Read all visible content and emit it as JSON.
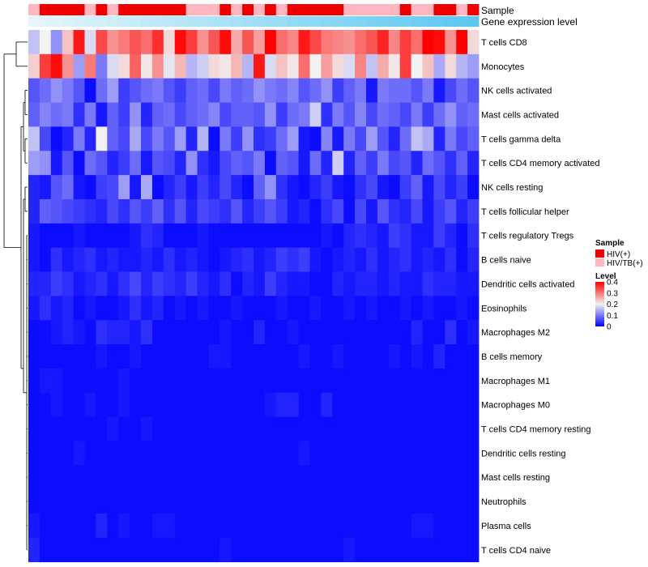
{
  "chart_data": {
    "type": "heatmap",
    "title": "",
    "n_columns": 40,
    "annotation_titles": {
      "sample": "Sample",
      "gene": "Gene expression level"
    },
    "sample_groups": [
      "HIV(+)",
      "HIV/TB(+)"
    ],
    "sample_group_colors": {
      "HIV(+)": "#ee0000",
      "HIV/TB(+)": "#ffb6c1"
    },
    "sample_annotation": [
      "HIV/TB(+)",
      "HIV(+)",
      "HIV(+)",
      "HIV(+)",
      "HIV(+)",
      "HIV/TB(+)",
      "HIV(+)",
      "HIV/TB(+)",
      "HIV(+)",
      "HIV(+)",
      "HIV(+)",
      "HIV(+)",
      "HIV(+)",
      "HIV(+)",
      "HIV/TB(+)",
      "HIV/TB(+)",
      "HIV/TB(+)",
      "HIV(+)",
      "HIV/TB(+)",
      "HIV(+)",
      "HIV/TB(+)",
      "HIV(+)",
      "HIV/TB(+)",
      "HIV(+)",
      "HIV(+)",
      "HIV(+)",
      "HIV(+)",
      "HIV(+)",
      "HIV/TB(+)",
      "HIV/TB(+)",
      "HIV/TB(+)",
      "HIV/TB(+)",
      "HIV/TB(+)",
      "HIV(+)",
      "HIV/TB(+)",
      "HIV/TB(+)",
      "HIV(+)",
      "HIV(+)",
      "HIV/TB(+)",
      "HIV(+)"
    ],
    "gene_expression_range": [
      0,
      1
    ],
    "row_labels": [
      "T cells CD8",
      "Monocytes",
      "NK cells activated",
      "Mast cells activated",
      "T cells gamma delta",
      "T cells CD4 memory activated",
      "NK cells resting",
      "T cells follicular helper",
      "T cells regulatory  Tregs",
      "B cells naive",
      "Dendritic cells activated",
      "Eosinophils",
      "Macrophages M2",
      "B cells memory",
      "Macrophages M1",
      "Macrophages M0",
      "T cells CD4 memory resting",
      "Dendritic cells resting",
      "Mast cells resting",
      "Neutrophils",
      "Plasma cells",
      "T cells CD4 naive"
    ],
    "values": [
      [
        0.16,
        0.2,
        0.12,
        0.24,
        0.38,
        0.18,
        0.34,
        0.28,
        0.3,
        0.33,
        0.31,
        0.36,
        0.22,
        0.39,
        0.35,
        0.28,
        0.33,
        0.39,
        0.26,
        0.33,
        0.27,
        0.4,
        0.31,
        0.29,
        0.38,
        0.34,
        0.3,
        0.29,
        0.28,
        0.31,
        0.33,
        0.37,
        0.29,
        0.35,
        0.31,
        0.4,
        0.39,
        0.28,
        0.4,
        0.22
      ],
      [
        0.23,
        0.35,
        0.39,
        0.28,
        0.13,
        0.3,
        0.1,
        0.18,
        0.22,
        0.32,
        0.21,
        0.28,
        0.19,
        0.25,
        0.15,
        0.17,
        0.22,
        0.21,
        0.25,
        0.15,
        0.38,
        0.18,
        0.24,
        0.21,
        0.31,
        0.2,
        0.27,
        0.22,
        0.18,
        0.29,
        0.16,
        0.26,
        0.21,
        0.35,
        0.2,
        0.24,
        0.14,
        0.22,
        0.15,
        0.13
      ],
      [
        0.07,
        0.09,
        0.12,
        0.1,
        0.07,
        0.01,
        0.09,
        0.13,
        0.05,
        0.07,
        0.09,
        0.1,
        0.07,
        0.05,
        0.08,
        0.09,
        0.06,
        0.1,
        0.08,
        0.09,
        0.12,
        0.1,
        0.09,
        0.11,
        0.07,
        0.09,
        0.12,
        0.05,
        0.08,
        0.1,
        0.02,
        0.1,
        0.09,
        0.09,
        0.07,
        0.1,
        0.02,
        0.06,
        0.09,
        0.07
      ],
      [
        0.08,
        0.11,
        0.09,
        0.1,
        0.04,
        0.1,
        0.02,
        0.08,
        0.05,
        0.12,
        0.03,
        0.08,
        0.09,
        0.06,
        0.08,
        0.09,
        0.11,
        0.06,
        0.08,
        0.08,
        0.07,
        0.12,
        0.05,
        0.09,
        0.1,
        0.17,
        0.04,
        0.1,
        0.07,
        0.11,
        0.06,
        0.09,
        0.08,
        0.06,
        0.1,
        0.05,
        0.09,
        0.12,
        0.08,
        0.09
      ],
      [
        0.16,
        0.06,
        0.01,
        0.03,
        0.1,
        0.03,
        0.2,
        0.08,
        0.06,
        0.14,
        0.06,
        0.1,
        0.07,
        0.13,
        0.03,
        0.15,
        0.01,
        0.1,
        0.05,
        0.12,
        0.04,
        0.05,
        0.09,
        0.13,
        0.02,
        0.01,
        0.11,
        0.02,
        0.1,
        0.06,
        0.13,
        0.07,
        0.03,
        0.09,
        0.16,
        0.14,
        0.03,
        0.1,
        0.06,
        0.08
      ],
      [
        0.13,
        0.12,
        0.02,
        0.07,
        0.01,
        0.09,
        0.07,
        0.03,
        0.05,
        0.09,
        0.02,
        0.07,
        0.06,
        0.03,
        0.12,
        0.04,
        0.02,
        0.06,
        0.08,
        0.07,
        0.1,
        0.01,
        0.08,
        0.07,
        0.02,
        0.09,
        0.03,
        0.17,
        0.03,
        0.08,
        0.05,
        0.1,
        0.06,
        0.07,
        0.03,
        0.09,
        0.07,
        0.04,
        0.08,
        0.03
      ],
      [
        0.03,
        0.02,
        0.07,
        0.09,
        0.02,
        0.01,
        0.05,
        0.06,
        0.13,
        0.02,
        0.14,
        0.01,
        0.03,
        0.05,
        0.02,
        0.05,
        0.03,
        0.06,
        0.03,
        0.01,
        0.08,
        0.12,
        0.04,
        0.02,
        0.01,
        0.03,
        0.05,
        0.02,
        0.01,
        0.04,
        0.06,
        0.02,
        0.01,
        0.05,
        0.08,
        0.02,
        0.06,
        0.03,
        0.05,
        0.01
      ],
      [
        0.03,
        0.08,
        0.07,
        0.06,
        0.05,
        0.04,
        0.03,
        0.06,
        0.04,
        0.07,
        0.05,
        0.08,
        0.04,
        0.07,
        0.03,
        0.06,
        0.05,
        0.04,
        0.07,
        0.03,
        0.05,
        0.07,
        0.05,
        0.02,
        0.03,
        0.01,
        0.04,
        0.06,
        0.01,
        0.06,
        0.02,
        0.07,
        0.04,
        0.03,
        0.06,
        0.02,
        0.05,
        0.07,
        0.03,
        0.05
      ],
      [
        0.02,
        0.01,
        0.01,
        0.01,
        0.02,
        0.01,
        0.01,
        0.01,
        0.01,
        0.02,
        0.04,
        0.03,
        0.01,
        0.01,
        0.01,
        0.02,
        0.01,
        0.01,
        0.01,
        0.01,
        0.01,
        0.01,
        0.01,
        0.01,
        0.01,
        0.01,
        0.02,
        0.01,
        0.03,
        0.04,
        0.03,
        0.02,
        0.05,
        0.04,
        0.02,
        0.02,
        0.05,
        0.03,
        0.01,
        0.04
      ],
      [
        0.02,
        0.01,
        0.04,
        0.02,
        0.03,
        0.04,
        0.02,
        0.03,
        0.02,
        0.02,
        0.03,
        0.02,
        0.04,
        0.02,
        0.03,
        0.02,
        0.01,
        0.02,
        0.03,
        0.04,
        0.02,
        0.03,
        0.05,
        0.04,
        0.05,
        0.02,
        0.01,
        0.02,
        0.03,
        0.02,
        0.04,
        0.02,
        0.03,
        0.04,
        0.02,
        0.03,
        0.02,
        0.04,
        0.01,
        0.03
      ],
      [
        0.03,
        0.03,
        0.05,
        0.04,
        0.02,
        0.03,
        0.04,
        0.02,
        0.04,
        0.06,
        0.03,
        0.05,
        0.04,
        0.03,
        0.05,
        0.03,
        0.02,
        0.04,
        0.01,
        0.03,
        0.02,
        0.05,
        0.03,
        0.02,
        0.02,
        0.01,
        0.01,
        0.03,
        0.02,
        0.03,
        0.03,
        0.02,
        0.03,
        0.02,
        0.02,
        0.04,
        0.03,
        0.03,
        0.02,
        0.02
      ],
      [
        0.02,
        0.04,
        0.02,
        0.03,
        0.01,
        0.02,
        0.01,
        0.01,
        0.02,
        0.04,
        0.02,
        0.03,
        0.01,
        0.02,
        0.01,
        0.02,
        0.01,
        0.01,
        0.02,
        0.01,
        0.01,
        0.01,
        0.02,
        0.01,
        0.01,
        0.02,
        0.01,
        0.01,
        0.02,
        0.01,
        0.02,
        0.01,
        0.01,
        0.02,
        0.01,
        0.02,
        0.01,
        0.01,
        0.02,
        0.01
      ],
      [
        0.01,
        0.01,
        0.02,
        0.03,
        0.02,
        0.01,
        0.04,
        0.03,
        0.03,
        0.02,
        0.04,
        0.01,
        0.01,
        0.01,
        0.01,
        0.01,
        0.01,
        0.02,
        0.01,
        0.01,
        0.03,
        0.01,
        0.01,
        0.02,
        0.01,
        0.01,
        0.01,
        0.01,
        0.01,
        0.01,
        0.01,
        0.01,
        0.01,
        0.01,
        0.03,
        0.01,
        0.01,
        0.04,
        0.01,
        0.02
      ],
      [
        0.01,
        0.01,
        0.01,
        0.01,
        0.01,
        0.01,
        0.02,
        0.01,
        0.01,
        0.02,
        0.01,
        0.01,
        0.01,
        0.01,
        0.01,
        0.01,
        0.02,
        0.02,
        0.01,
        0.01,
        0.01,
        0.01,
        0.01,
        0.01,
        0.02,
        0.01,
        0.01,
        0.02,
        0.01,
        0.01,
        0.01,
        0.01,
        0.02,
        0.01,
        0.02,
        0.01,
        0.03,
        0.01,
        0.01,
        0.01
      ],
      [
        0.01,
        0.02,
        0.02,
        0.01,
        0.01,
        0.01,
        0.01,
        0.01,
        0.02,
        0.01,
        0.01,
        0.01,
        0.01,
        0.01,
        0.01,
        0.01,
        0.01,
        0.01,
        0.01,
        0.01,
        0.01,
        0.01,
        0.01,
        0.01,
        0.01,
        0.01,
        0.01,
        0.01,
        0.01,
        0.01,
        0.01,
        0.01,
        0.01,
        0.01,
        0.01,
        0.01,
        0.01,
        0.01,
        0.01,
        0.01
      ],
      [
        0.01,
        0.01,
        0.02,
        0.01,
        0.01,
        0.02,
        0.01,
        0.01,
        0.02,
        0.01,
        0.01,
        0.01,
        0.01,
        0.01,
        0.01,
        0.01,
        0.01,
        0.01,
        0.01,
        0.01,
        0.01,
        0.02,
        0.03,
        0.03,
        0.01,
        0.01,
        0.03,
        0.01,
        0.01,
        0.01,
        0.01,
        0.01,
        0.01,
        0.01,
        0.01,
        0.01,
        0.01,
        0.01,
        0.01,
        0.01
      ],
      [
        0.01,
        0.01,
        0.01,
        0.01,
        0.01,
        0.01,
        0.01,
        0.02,
        0.01,
        0.01,
        0.02,
        0.01,
        0.01,
        0.01,
        0.01,
        0.01,
        0.01,
        0.01,
        0.01,
        0.01,
        0.01,
        0.01,
        0.01,
        0.01,
        0.01,
        0.01,
        0.01,
        0.01,
        0.01,
        0.01,
        0.01,
        0.01,
        0.01,
        0.01,
        0.01,
        0.01,
        0.01,
        0.01,
        0.01,
        0.01
      ],
      [
        0.01,
        0.01,
        0.01,
        0.01,
        0.02,
        0.01,
        0.01,
        0.01,
        0.01,
        0.01,
        0.01,
        0.01,
        0.01,
        0.01,
        0.01,
        0.01,
        0.01,
        0.01,
        0.01,
        0.01,
        0.01,
        0.01,
        0.01,
        0.01,
        0.02,
        0.01,
        0.01,
        0.01,
        0.01,
        0.01,
        0.01,
        0.01,
        0.01,
        0.01,
        0.01,
        0.01,
        0.01,
        0.01,
        0.01,
        0.01
      ],
      [
        0.01,
        0.01,
        0.01,
        0.01,
        0.01,
        0.01,
        0.01,
        0.01,
        0.01,
        0.01,
        0.01,
        0.01,
        0.01,
        0.01,
        0.01,
        0.01,
        0.01,
        0.01,
        0.01,
        0.01,
        0.01,
        0.01,
        0.01,
        0.01,
        0.01,
        0.01,
        0.01,
        0.01,
        0.01,
        0.01,
        0.01,
        0.01,
        0.01,
        0.01,
        0.01,
        0.01,
        0.01,
        0.01,
        0.01,
        0.01
      ],
      [
        0.01,
        0.01,
        0.01,
        0.01,
        0.01,
        0.01,
        0.01,
        0.01,
        0.01,
        0.01,
        0.01,
        0.01,
        0.01,
        0.01,
        0.01,
        0.01,
        0.01,
        0.01,
        0.01,
        0.01,
        0.01,
        0.01,
        0.01,
        0.01,
        0.01,
        0.01,
        0.01,
        0.01,
        0.01,
        0.01,
        0.01,
        0.01,
        0.01,
        0.01,
        0.01,
        0.01,
        0.01,
        0.01,
        0.01,
        0.01
      ],
      [
        0.02,
        0.01,
        0.01,
        0.01,
        0.01,
        0.01,
        0.03,
        0.01,
        0.02,
        0.01,
        0.01,
        0.02,
        0.02,
        0.01,
        0.01,
        0.01,
        0.01,
        0.01,
        0.01,
        0.01,
        0.01,
        0.01,
        0.01,
        0.01,
        0.01,
        0.01,
        0.01,
        0.01,
        0.01,
        0.01,
        0.01,
        0.01,
        0.01,
        0.01,
        0.02,
        0.02,
        0.01,
        0.01,
        0.01,
        0.01
      ],
      [
        0.03,
        0.01,
        0.01,
        0.01,
        0.01,
        0.01,
        0.01,
        0.01,
        0.01,
        0.01,
        0.01,
        0.01,
        0.01,
        0.01,
        0.01,
        0.01,
        0.01,
        0.02,
        0.01,
        0.01,
        0.01,
        0.01,
        0.01,
        0.01,
        0.01,
        0.01,
        0.01,
        0.01,
        0.02,
        0.01,
        0.01,
        0.01,
        0.01,
        0.01,
        0.01,
        0.01,
        0.01,
        0.01,
        0.01,
        0.01
      ]
    ],
    "legend": {
      "sample_title": "Sample",
      "level_title": "Level",
      "level_ticks": [
        "0.4",
        "0.3",
        "0.2",
        "0.1",
        "0"
      ],
      "level_tick_values": [
        0.4,
        0.3,
        0.2,
        0.1,
        0
      ],
      "level_range": [
        0,
        0.4
      ]
    },
    "colors": {
      "low": "#0000ff",
      "mid": "#f2f2f2",
      "high": "#ff0000",
      "gene_low": "#e6f5fb",
      "gene_high": "#5bc8f1",
      "dendrogram": "#000000"
    }
  }
}
